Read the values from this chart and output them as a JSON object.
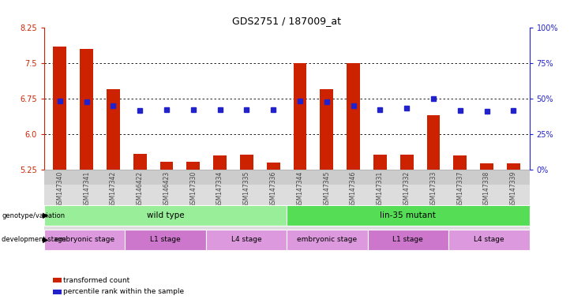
{
  "title": "GDS2751 / 187009_at",
  "samples": [
    "GSM147340",
    "GSM147341",
    "GSM147342",
    "GSM146422",
    "GSM146423",
    "GSM147330",
    "GSM147334",
    "GSM147335",
    "GSM147336",
    "GSM147344",
    "GSM147345",
    "GSM147346",
    "GSM147331",
    "GSM147332",
    "GSM147333",
    "GSM147337",
    "GSM147338",
    "GSM147339"
  ],
  "bar_values": [
    7.85,
    7.8,
    6.95,
    5.58,
    5.42,
    5.42,
    5.55,
    5.57,
    5.4,
    7.5,
    6.95,
    7.5,
    5.57,
    5.57,
    6.4,
    5.55,
    5.38,
    5.38
  ],
  "blue_values": [
    6.7,
    6.68,
    6.6,
    6.5,
    6.52,
    6.52,
    6.52,
    6.52,
    6.52,
    6.7,
    6.68,
    6.6,
    6.52,
    6.55,
    6.75,
    6.5,
    6.48,
    6.5
  ],
  "ymin": 5.25,
  "ymax": 8.25,
  "yticks_left": [
    5.25,
    6.0,
    6.75,
    7.5,
    8.25
  ],
  "yticks_right": [
    0,
    25,
    50,
    75,
    100
  ],
  "bar_color": "#cc2200",
  "blue_color": "#2222cc",
  "left_tick_color": "#cc2200",
  "right_tick_color": "#2222cc",
  "genotype_groups": [
    {
      "label": "wild type",
      "start": 0,
      "end": 9,
      "color": "#99ee99"
    },
    {
      "label": "lin-35 mutant",
      "start": 9,
      "end": 18,
      "color": "#55dd55"
    }
  ],
  "stage_groups": [
    {
      "label": "embryonic stage",
      "start": 0,
      "end": 3,
      "color": "#dd99dd"
    },
    {
      "label": "L1 stage",
      "start": 3,
      "end": 6,
      "color": "#cc77cc"
    },
    {
      "label": "L4 stage",
      "start": 6,
      "end": 9,
      "color": "#dd99dd"
    },
    {
      "label": "embryonic stage",
      "start": 9,
      "end": 12,
      "color": "#dd99dd"
    },
    {
      "label": "L1 stage",
      "start": 12,
      "end": 15,
      "color": "#cc77cc"
    },
    {
      "label": "L4 stage",
      "start": 15,
      "end": 18,
      "color": "#dd99dd"
    }
  ],
  "legend_items": [
    {
      "label": "transformed count",
      "color": "#cc2200",
      "marker": "s"
    },
    {
      "label": "percentile rank within the sample",
      "color": "#2222cc",
      "marker": "s"
    }
  ]
}
